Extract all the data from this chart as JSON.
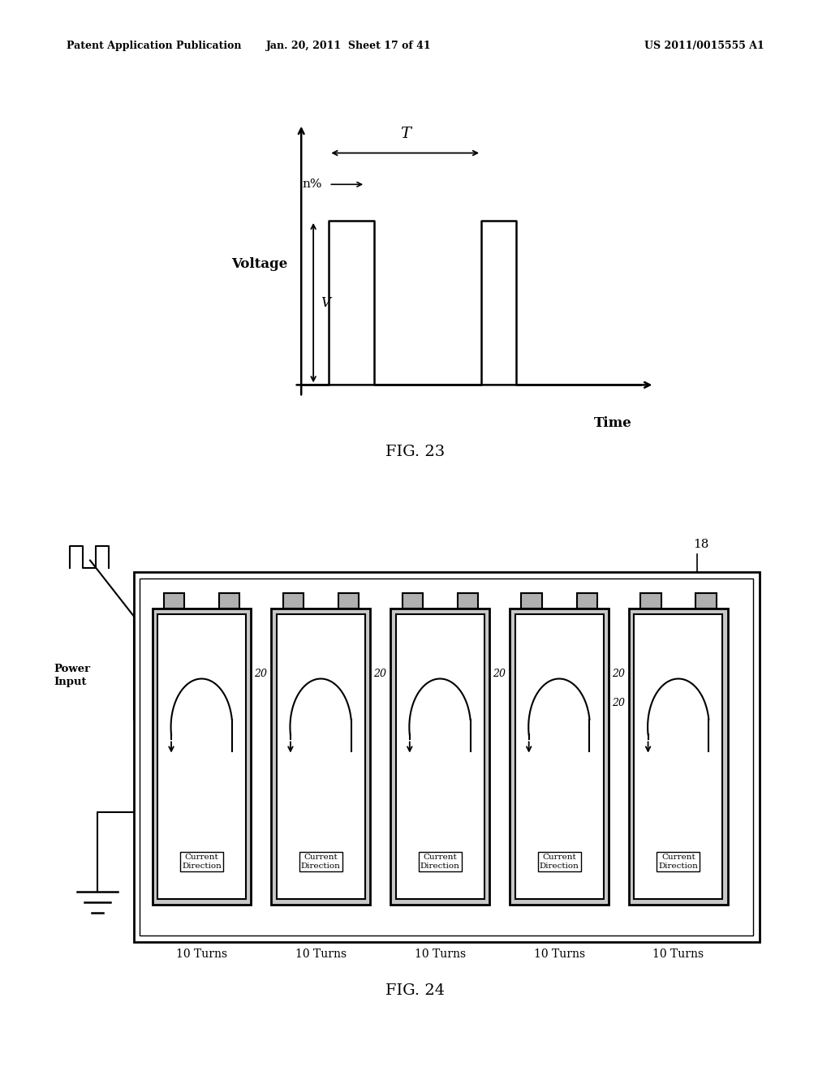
{
  "bg_color": "#ffffff",
  "header_left": "Patent Application Publication",
  "header_mid": "Jan. 20, 2011  Sheet 17 of 41",
  "header_right": "US 2011/0015555 A1",
  "fig23_title": "FIG. 23",
  "fig24_title": "FIG. 24",
  "fig23_xlabel": "Time",
  "fig23_ylabel": "Voltage",
  "fig23_label_V": "V",
  "fig23_label_n": "n%",
  "fig23_label_T": "T",
  "num_coils": 5,
  "coil_label": "Current\nDirection",
  "turns_label": "10 Turns",
  "power_label": "Power\nInput",
  "label_18": "18",
  "label_20": "20"
}
